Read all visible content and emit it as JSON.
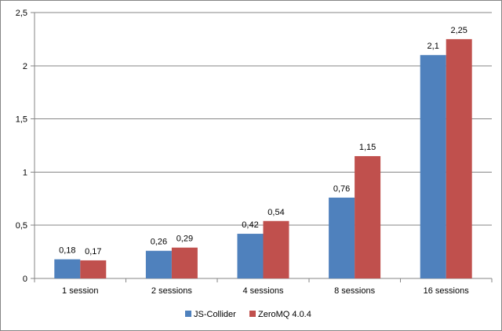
{
  "chart_data": {
    "type": "bar",
    "categories": [
      "1 session",
      "2 sessions",
      "4 sessions",
      "8 sessions",
      "16 sessions"
    ],
    "series": [
      {
        "name": "JS-Collider",
        "color": "#4f81bd",
        "values": [
          0.18,
          0.26,
          0.42,
          0.76,
          2.1
        ],
        "value_labels": [
          "0,18",
          "0,26",
          "0,42",
          "0,76",
          "2,1"
        ]
      },
      {
        "name": "ZeroMQ 4.0.4",
        "color": "#c0504d",
        "values": [
          0.17,
          0.29,
          0.54,
          1.15,
          2.25
        ],
        "value_labels": [
          "0,17",
          "0,29",
          "0,54",
          "1,15",
          "2,25"
        ]
      }
    ],
    "y_ticks": [
      0,
      0.5,
      1,
      1.5,
      2,
      2.5
    ],
    "y_tick_labels": [
      "0",
      "0,5",
      "1",
      "1,5",
      "2",
      "2,5"
    ],
    "ylim": [
      0,
      2.5
    ],
    "title": "",
    "xlabel": "",
    "ylabel": "",
    "grid": true,
    "legend_position": "bottom"
  }
}
